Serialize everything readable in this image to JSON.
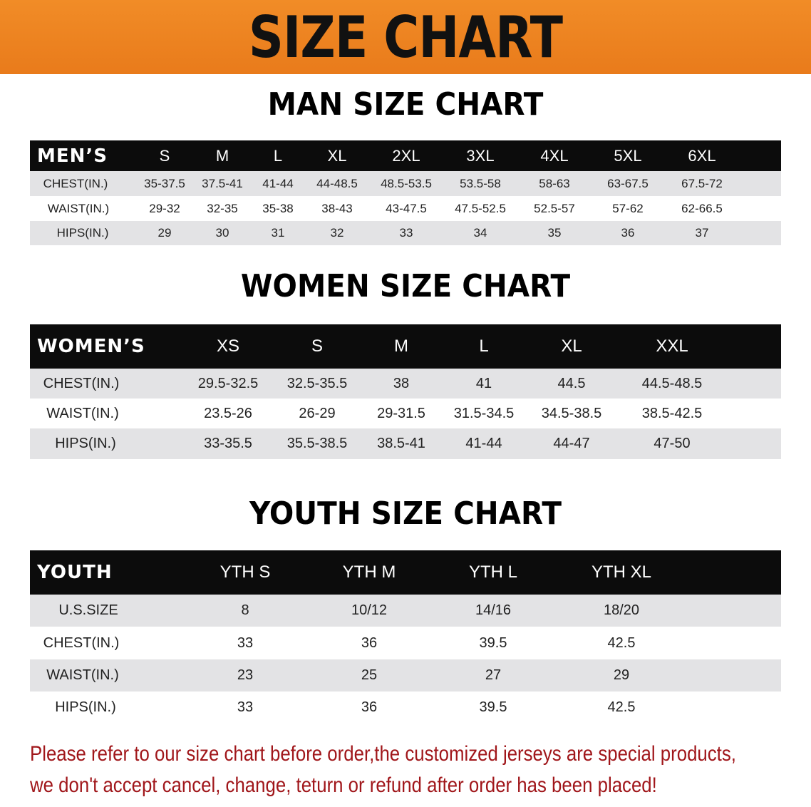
{
  "banner": {
    "title": "SIZE CHART",
    "color": "#ec821f"
  },
  "men": {
    "title": "MAN SIZE CHART",
    "header": [
      "MEN’S",
      "S",
      "M",
      "L",
      "XL",
      "2XL",
      "3XL",
      "4XL",
      "5XL",
      "6XL"
    ],
    "rows": [
      [
        "CHEST(IN.)",
        "35-37.5",
        "37.5-41",
        "41-44",
        "44-48.5",
        "48.5-53.5",
        "53.5-58",
        "58-63",
        "63-67.5",
        "67.5-72"
      ],
      [
        "WAIST(IN.)",
        "29-32",
        "32-35",
        "35-38",
        "38-43",
        "43-47.5",
        "47.5-52.5",
        "52.5-57",
        "57-62",
        "62-66.5"
      ],
      [
        "HIPS(IN.)",
        "29",
        "30",
        "31",
        "32",
        "33",
        "34",
        "35",
        "36",
        "37"
      ]
    ]
  },
  "women": {
    "title": "WOMEN SIZE CHART",
    "header": [
      "WOMEN’S",
      "XS",
      "S",
      "M",
      "L",
      "XL",
      "XXL"
    ],
    "rows": [
      [
        "CHEST(IN.)",
        "29.5-32.5",
        "32.5-35.5",
        "38",
        "41",
        "44.5",
        "44.5-48.5"
      ],
      [
        "WAIST(IN.)",
        "23.5-26",
        "26-29",
        "29-31.5",
        "31.5-34.5",
        "34.5-38.5",
        "38.5-42.5"
      ],
      [
        "HIPS(IN.)",
        "33-35.5",
        "35.5-38.5",
        "38.5-41",
        "41-44",
        "44-47",
        "47-50"
      ]
    ]
  },
  "youth": {
    "title": "YOUTH SIZE CHART",
    "header": [
      "YOUTH",
      "YTH S",
      "YTH M",
      "YTH L",
      "YTH XL"
    ],
    "rows": [
      [
        "U.S.SIZE",
        "8",
        "10/12",
        "14/16",
        "18/20"
      ],
      [
        "CHEST(IN.)",
        "33",
        "36",
        "39.5",
        "42.5"
      ],
      [
        "WAIST(IN.)",
        "23",
        "25",
        "27",
        "29"
      ],
      [
        "HIPS(IN.)",
        "33",
        "36",
        "39.5",
        "42.5"
      ]
    ]
  },
  "notice": {
    "line1": "Please refer to our size chart before order,the customized jerseys are special products,",
    "line2": "we don't accept cancel, change, teturn or refund after order has been placed!",
    "color": "#a0161a"
  }
}
